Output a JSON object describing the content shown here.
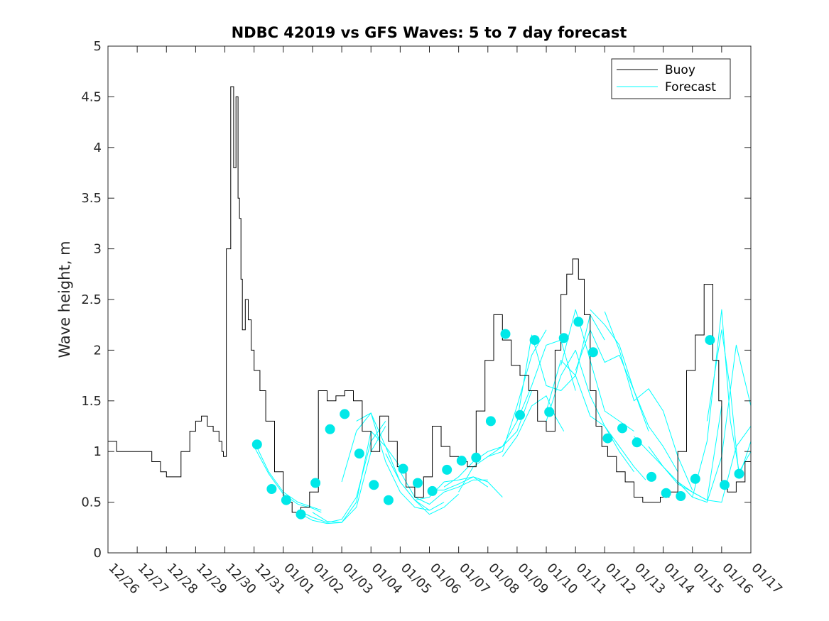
{
  "chart_data": {
    "type": "line",
    "title": "NDBC 42019 vs GFS Waves: 5 to 7 day forecast",
    "xlabel": "",
    "ylabel": "Wave height, m",
    "ylim": [
      0,
      5
    ],
    "yticks": [
      0,
      0.5,
      1,
      1.5,
      2,
      2.5,
      3,
      3.5,
      4,
      4.5,
      5
    ],
    "ytick_labels": [
      "0",
      "0.5",
      "1",
      "1.5",
      "2",
      "2.5",
      "3",
      "3.5",
      "4",
      "4.5",
      "5"
    ],
    "xlim_days": [
      0,
      22
    ],
    "xtick_labels": [
      "12/26",
      "12/27",
      "12/28",
      "12/29",
      "12/30",
      "12/31",
      "01/01",
      "01/02",
      "01/03",
      "01/04",
      "01/05",
      "01/06",
      "01/07",
      "01/08",
      "01/09",
      "01/10",
      "01/11",
      "01/12",
      "01/13",
      "01/14",
      "01/15",
      "01/16",
      "01/17"
    ],
    "grid": false,
    "legend": {
      "location": "top-right",
      "entries": [
        "Buoy",
        "Forecast"
      ]
    },
    "colors": {
      "buoy": "#000000",
      "forecast": "#00ffff",
      "markers": "#00e8e8"
    },
    "buoy": {
      "name": "Buoy",
      "x": [
        0,
        0.3,
        0.6,
        0.9,
        1.2,
        1.5,
        1.8,
        2.0,
        2.2,
        2.5,
        2.8,
        3.0,
        3.2,
        3.4,
        3.6,
        3.8,
        3.9,
        3.95,
        4.05,
        4.2,
        4.3,
        4.38,
        4.45,
        4.5,
        4.55,
        4.6,
        4.7,
        4.8,
        4.9,
        5.0,
        5.2,
        5.4,
        5.7,
        6.0,
        6.3,
        6.6,
        6.9,
        7.2,
        7.5,
        7.8,
        8.1,
        8.4,
        8.7,
        9.0,
        9.3,
        9.6,
        9.9,
        10.2,
        10.5,
        10.8,
        11.1,
        11.4,
        11.7,
        12.0,
        12.3,
        12.6,
        12.9,
        13.2,
        13.5,
        13.8,
        14.1,
        14.4,
        14.7,
        15.0,
        15.3,
        15.5,
        15.7,
        15.9,
        16.1,
        16.3,
        16.5,
        16.7,
        16.9,
        17.1,
        17.4,
        17.7,
        18.0,
        18.3,
        18.6,
        18.9,
        19.2,
        19.5,
        19.8,
        20.1,
        20.4,
        20.7,
        20.9,
        21.0,
        21.2,
        21.5,
        21.8,
        22.0
      ],
      "y": [
        1.1,
        1.0,
        1.0,
        1.0,
        1.0,
        0.9,
        0.8,
        0.75,
        0.75,
        1.0,
        1.2,
        1.3,
        1.35,
        1.25,
        1.2,
        1.1,
        1.0,
        0.95,
        3.0,
        4.6,
        3.8,
        4.5,
        3.5,
        3.3,
        2.7,
        2.2,
        2.5,
        2.3,
        2.0,
        1.8,
        1.6,
        1.3,
        0.8,
        0.5,
        0.4,
        0.45,
        0.6,
        1.6,
        1.5,
        1.55,
        1.6,
        1.5,
        1.2,
        1.0,
        1.35,
        1.1,
        0.85,
        0.65,
        0.55,
        0.75,
        1.25,
        1.05,
        0.95,
        0.9,
        0.85,
        1.4,
        1.9,
        2.35,
        2.1,
        1.85,
        1.75,
        1.6,
        1.3,
        1.2,
        2.0,
        2.55,
        2.75,
        2.9,
        2.7,
        2.35,
        1.6,
        1.25,
        1.05,
        0.95,
        0.8,
        0.7,
        0.55,
        0.5,
        0.5,
        0.55,
        0.6,
        1.0,
        1.8,
        2.15,
        2.65,
        1.9,
        1.5,
        0.7,
        0.6,
        0.7,
        0.9,
        1.0
      ]
    },
    "forecast_runs": [
      {
        "x": [
          5.0,
          5.5,
          6.0,
          6.5,
          7.0,
          7.3
        ],
        "y": [
          1.1,
          0.8,
          0.6,
          0.5,
          0.45,
          0.42
        ]
      },
      {
        "x": [
          5.0,
          5.5,
          6.0,
          6.5,
          7.0,
          7.3
        ],
        "y": [
          1.05,
          0.78,
          0.58,
          0.48,
          0.44,
          0.4
        ]
      },
      {
        "x": [
          6.5,
          7.0,
          7.5,
          8.0,
          8.5,
          9.0,
          9.5
        ],
        "y": [
          0.42,
          0.35,
          0.3,
          0.33,
          0.55,
          1.1,
          1.3
        ]
      },
      {
        "x": [
          6.5,
          7.0,
          7.5,
          8.0,
          8.5,
          9.0,
          9.5
        ],
        "y": [
          0.4,
          0.32,
          0.29,
          0.3,
          0.45,
          1.0,
          1.25
        ]
      },
      {
        "x": [
          7.0,
          7.5,
          8.0,
          8.5,
          9.0,
          9.5,
          10.0
        ],
        "y": [
          0.4,
          0.31,
          0.3,
          0.5,
          1.2,
          1.05,
          0.85
        ]
      },
      {
        "x": [
          8.0,
          8.5,
          9.0,
          9.5,
          10.0,
          10.5,
          11.0
        ],
        "y": [
          0.7,
          1.2,
          1.38,
          1.05,
          0.7,
          0.52,
          0.42
        ]
      },
      {
        "x": [
          8.5,
          9.0,
          9.5,
          10.0,
          10.5,
          11.0,
          11.5
        ],
        "y": [
          1.3,
          1.38,
          0.9,
          0.6,
          0.45,
          0.42,
          0.5
        ]
      },
      {
        "x": [
          9.5,
          10.0,
          10.5,
          11.0,
          11.5,
          12.0
        ],
        "y": [
          0.98,
          0.7,
          0.52,
          0.38,
          0.45,
          0.58
        ]
      },
      {
        "x": [
          10.0,
          10.5,
          11.0,
          11.5,
          12.0,
          12.5,
          13.0
        ],
        "y": [
          0.8,
          0.55,
          0.48,
          0.6,
          0.65,
          0.72,
          0.72
        ]
      },
      {
        "x": [
          10.5,
          11.0,
          11.5,
          12.0,
          12.5,
          13.0
        ],
        "y": [
          0.52,
          0.55,
          0.7,
          0.72,
          0.75,
          0.65
        ]
      },
      {
        "x": [
          11.0,
          11.5,
          12.0,
          12.5,
          13.0,
          13.5
        ],
        "y": [
          0.62,
          0.62,
          0.68,
          0.75,
          0.7,
          0.55
        ]
      },
      {
        "x": [
          11.5,
          12.0,
          12.5,
          13.0,
          13.5,
          14.0,
          14.5
        ],
        "y": [
          0.65,
          0.75,
          0.9,
          1.0,
          1.05,
          1.2,
          1.6
        ]
      },
      {
        "x": [
          12.0,
          12.5,
          13.0,
          13.5,
          14.0,
          14.5,
          15.0
        ],
        "y": [
          0.6,
          0.85,
          0.95,
          1.0,
          1.45,
          1.95,
          2.2
        ]
      },
      {
        "x": [
          13.0,
          13.5,
          14.0,
          14.5,
          15.0,
          15.5,
          16.0
        ],
        "y": [
          0.95,
          1.05,
          1.3,
          1.65,
          2.05,
          2.1,
          1.6
        ]
      },
      {
        "x": [
          13.5,
          14.0,
          14.5,
          15.0,
          15.3,
          15.6
        ],
        "y": [
          0.95,
          1.15,
          1.45,
          1.55,
          1.35,
          1.2
        ]
      },
      {
        "x": [
          14.0,
          14.5,
          15.0,
          15.5,
          16.0,
          16.5,
          17.0
        ],
        "y": [
          1.3,
          2.15,
          1.65,
          1.6,
          1.75,
          2.35,
          2.1
        ]
      },
      {
        "x": [
          15.0,
          15.5,
          16.0,
          16.5,
          17.0,
          17.5,
          18.0
        ],
        "y": [
          1.4,
          1.9,
          1.75,
          1.35,
          1.25,
          1.0,
          0.8
        ]
      },
      {
        "x": [
          15.0,
          15.5,
          16.0,
          16.5,
          17.0,
          17.5,
          18.0,
          18.4
        ],
        "y": [
          1.3,
          1.75,
          2.0,
          1.55,
          1.25,
          1.05,
          0.85,
          0.72
        ]
      },
      {
        "x": [
          15.5,
          16.0,
          16.5,
          17.0,
          17.5,
          18.0
        ],
        "y": [
          1.85,
          2.4,
          1.9,
          1.4,
          1.3,
          1.2
        ]
      },
      {
        "x": [
          16.0,
          16.5,
          17.0,
          17.5,
          18.0,
          18.5
        ],
        "y": [
          1.8,
          2.2,
          1.88,
          1.95,
          1.6,
          1.2
        ]
      },
      {
        "x": [
          16.5,
          17.0,
          17.5,
          18.0,
          18.5,
          19.0,
          19.5
        ],
        "y": [
          2.4,
          2.25,
          2.05,
          1.6,
          1.25,
          1.05,
          0.8
        ]
      },
      {
        "x": [
          17.0,
          17.5,
          18.0,
          18.5,
          19.0,
          19.5,
          20.0
        ],
        "y": [
          2.38,
          2.0,
          1.5,
          1.62,
          1.4,
          0.95,
          0.62
        ]
      },
      {
        "x": [
          18.0,
          18.5,
          19.0,
          19.5,
          20.0,
          20.5,
          21.0
        ],
        "y": [
          1.15,
          1.0,
          0.85,
          0.7,
          0.6,
          0.52,
          1.45
        ]
      },
      {
        "x": [
          18.5,
          19.0,
          19.5,
          20.0,
          20.5,
          21.0,
          21.5,
          22.0
        ],
        "y": [
          1.05,
          0.85,
          0.68,
          0.6,
          0.52,
          0.5,
          1.05,
          1.25
        ]
      },
      {
        "x": [
          19.5,
          20.0,
          20.5,
          21.0,
          21.5,
          22.0
        ],
        "y": [
          0.7,
          0.55,
          0.5,
          0.95,
          2.05,
          1.45
        ]
      },
      {
        "x": [
          20.0,
          20.5,
          21.0,
          21.3,
          21.6,
          22.0
        ],
        "y": [
          0.55,
          1.1,
          2.4,
          1.3,
          0.8,
          1.0
        ]
      },
      {
        "x": [
          20.5,
          21.0,
          21.3,
          21.6,
          22.0
        ],
        "y": [
          1.3,
          2.2,
          1.6,
          0.75,
          1.1
        ]
      }
    ],
    "forecast_markers": {
      "x": [
        5.1,
        5.6,
        6.1,
        6.6,
        7.1,
        7.6,
        8.1,
        8.6,
        9.1,
        9.6,
        10.1,
        10.6,
        11.1,
        11.6,
        12.1,
        12.6,
        13.1,
        13.6,
        14.1,
        14.6,
        15.1,
        15.6,
        16.1,
        16.6,
        17.1,
        17.6,
        18.1,
        18.6,
        19.1,
        19.6,
        20.1,
        20.6,
        21.1,
        21.6
      ],
      "y": [
        1.07,
        0.63,
        0.52,
        0.38,
        0.69,
        1.22,
        1.37,
        0.98,
        0.67,
        0.52,
        0.83,
        0.69,
        0.61,
        0.82,
        0.91,
        0.94,
        1.3,
        2.16,
        1.36,
        2.1,
        1.39,
        2.12,
        2.28,
        1.98,
        1.13,
        1.23,
        1.09,
        0.75,
        0.59,
        0.56,
        0.73,
        2.1,
        0.67,
        0.78
      ]
    }
  }
}
